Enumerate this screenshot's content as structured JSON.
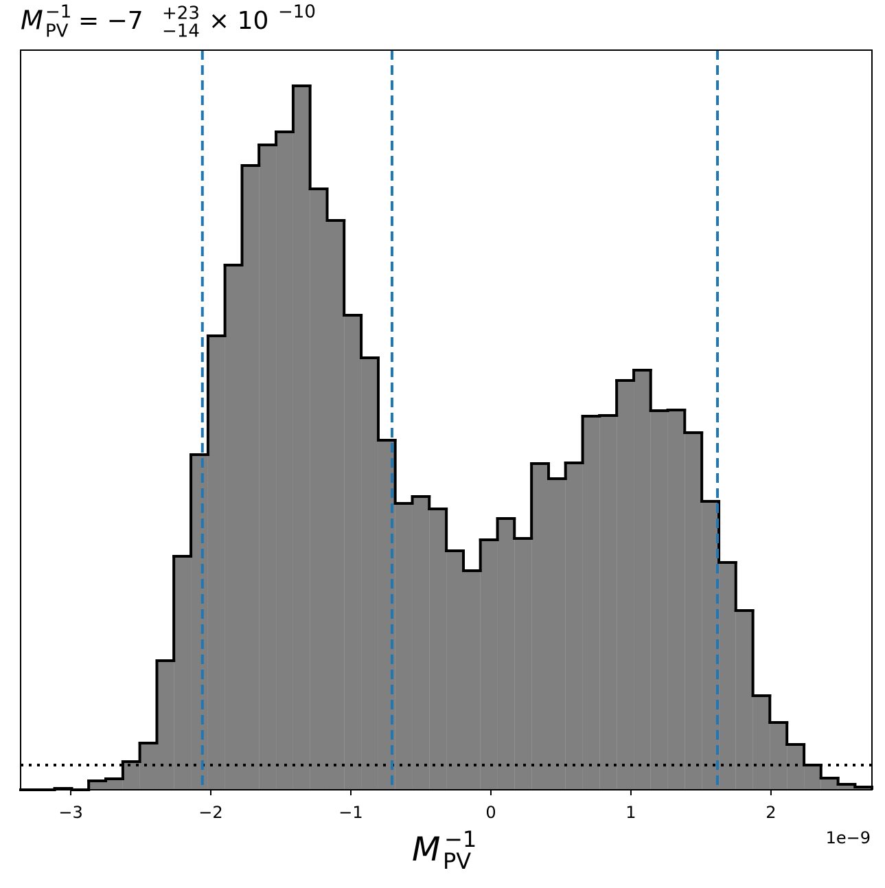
{
  "chart_data": {
    "type": "histogram",
    "title": {
      "symbol": "M",
      "subscript": "PV",
      "superscript": "−1",
      "rhs": "= −7",
      "upper": "+23",
      "lower": "−14",
      "times": "× 10",
      "exponent": "−10"
    },
    "xlabel": {
      "symbol": "M",
      "subscript": "PV",
      "superscript": "−1"
    },
    "x_offset_label": "1e−9",
    "bins": [
      -3.358,
      -3.236,
      -3.115,
      -2.993,
      -2.872,
      -2.75,
      -2.628,
      -2.507,
      -2.385,
      -2.264,
      -2.142,
      -2.02,
      -1.899,
      -1.777,
      -1.656,
      -1.534,
      -1.412,
      -1.291,
      -1.169,
      -1.048,
      -0.926,
      -0.804,
      -0.683,
      -0.561,
      -0.44,
      -0.318,
      -0.196,
      -0.075,
      0.047,
      0.168,
      0.29,
      0.412,
      0.533,
      0.655,
      0.776,
      0.898,
      1.02,
      1.141,
      1.263,
      1.384,
      1.506,
      1.628,
      1.749,
      1.871,
      1.992,
      2.114,
      2.236,
      2.357,
      2.479,
      2.6,
      2.721
    ],
    "values": [
      0,
      0,
      0.2,
      0,
      1.3,
      1.6,
      4.1,
      6.8,
      18.8,
      34.0,
      48.8,
      66.1,
      76.4,
      90.9,
      93.9,
      95.8,
      102.5,
      87.5,
      82.9,
      69.1,
      62.9,
      50.9,
      41.7,
      42.7,
      40.9,
      34.8,
      31.9,
      36.4,
      39.5,
      36.6,
      47.5,
      45.3,
      47.6,
      54.4,
      54.5,
      59.6,
      61.1,
      55.2,
      55.3,
      52.0,
      42.0,
      33.1,
      26.1,
      13.7,
      9.8,
      6.6,
      3.6,
      1.7,
      0.8,
      0.4
    ],
    "color": "#808080",
    "edge_color": "#000000",
    "xlim": [
      -3.358,
      2.721
    ],
    "ylim": [
      0,
      107.7
    ],
    "xticks": [
      {
        "value": -3,
        "label": "−3"
      },
      {
        "value": -2,
        "label": "−2"
      },
      {
        "value": -1,
        "label": "−1"
      },
      0,
      1,
      2
    ],
    "vlines": {
      "values": [
        -2.06,
        -0.706,
        1.618
      ],
      "color": "#1f77b4",
      "style": "dashed"
    },
    "hline": {
      "value": 3.6,
      "color": "#000000",
      "style": "dotted"
    }
  }
}
